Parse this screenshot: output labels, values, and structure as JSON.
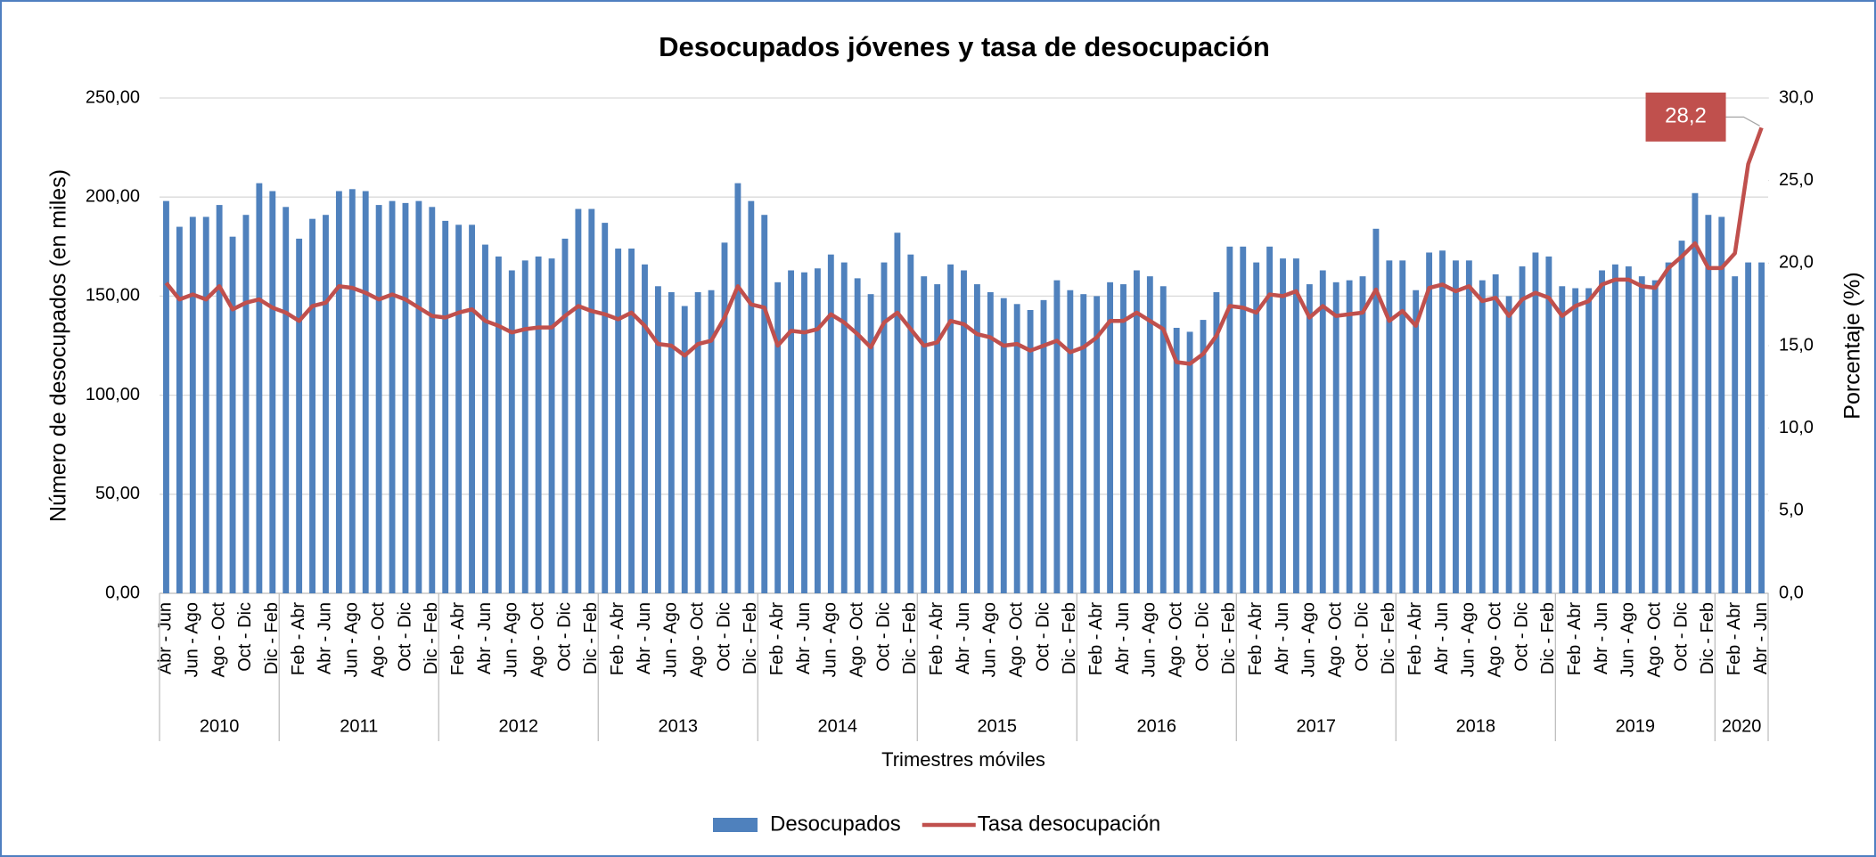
{
  "chart_data": {
    "type": "bar_line",
    "title": "Desocupados jóvenes y tasa de desocupación",
    "y_label": "Número de desocupados (en miles)",
    "y2_label": "Porcentaje (%)",
    "x_label": "Trimestres móviles",
    "categories": [
      "Abr - Jun",
      null,
      "Jun - Ago",
      null,
      "Ago - Oct",
      null,
      "Oct - Dic",
      null,
      "Dic - Feb",
      null,
      "Feb - Abr",
      null,
      "Abr - Jun",
      null,
      "Jun - Ago",
      null,
      "Ago - Oct",
      null,
      "Oct - Dic",
      null,
      "Dic - Feb",
      null,
      "Feb - Abr",
      null,
      "Abr - Jun",
      null,
      "Jun - Ago",
      null,
      "Ago - Oct",
      null,
      "Oct - Dic",
      null,
      "Dic - Feb",
      null,
      "Feb - Abr",
      null,
      "Abr - Jun",
      null,
      "Jun - Ago",
      null,
      "Ago - Oct",
      null,
      "Oct - Dic",
      null,
      "Dic - Feb",
      null,
      "Feb - Abr",
      null,
      "Abr - Jun",
      null,
      "Jun - Ago",
      null,
      "Ago - Oct",
      null,
      "Oct - Dic",
      null,
      "Dic - Feb",
      null,
      "Feb - Abr",
      null,
      "Abr - Jun",
      null,
      "Jun - Ago",
      null,
      "Ago - Oct",
      null,
      "Oct - Dic",
      null,
      "Dic - Feb",
      null,
      "Feb - Abr",
      null,
      "Abr - Jun",
      null,
      "Jun - Ago",
      null,
      "Ago - Oct",
      null,
      "Oct - Dic",
      null,
      "Dic - Feb",
      null,
      "Feb - Abr",
      null,
      "Abr - Jun",
      null,
      "Jun - Ago",
      null,
      "Ago - Oct",
      null,
      "Oct - Dic",
      null,
      "Dic - Feb",
      null,
      "Feb - Abr",
      null,
      "Abr - Jun",
      null,
      "Jun - Ago",
      null,
      "Ago - Oct",
      null,
      "Oct - Dic",
      null,
      "Dic - Feb",
      null,
      "Feb - Abr",
      null,
      "Abr - Jun",
      null,
      "Jun - Ago",
      null,
      "Ago - Oct",
      null,
      "Oct - Dic",
      null,
      "Dic - Feb",
      null,
      "Feb - Abr",
      null,
      "Abr - Jun"
    ],
    "year_groups": [
      {
        "label": "2010",
        "count": 9
      },
      {
        "label": "2011",
        "count": 12
      },
      {
        "label": "2012",
        "count": 12
      },
      {
        "label": "2013",
        "count": 12
      },
      {
        "label": "2014",
        "count": 12
      },
      {
        "label": "2015",
        "count": 12
      },
      {
        "label": "2016",
        "count": 12
      },
      {
        "label": "2017",
        "count": 12
      },
      {
        "label": "2018",
        "count": 12
      },
      {
        "label": "2019",
        "count": 12
      },
      {
        "label": "2020",
        "count": 4
      }
    ],
    "series": [
      {
        "name": "Desocupados",
        "type": "bar",
        "color": "#4f81bd",
        "values": [
          198,
          185,
          190,
          190,
          196,
          180,
          191,
          207,
          203,
          195,
          179,
          189,
          191,
          203,
          204,
          203,
          196,
          198,
          197,
          198,
          195,
          188,
          186,
          186,
          176,
          170,
          163,
          168,
          170,
          169,
          179,
          194,
          194,
          187,
          174,
          174,
          166,
          155,
          152,
          145,
          152,
          153,
          177,
          207,
          198,
          191,
          157,
          163,
          162,
          164,
          171,
          167,
          159,
          151,
          167,
          182,
          171,
          160,
          156,
          166,
          163,
          156,
          152,
          149,
          146,
          143,
          148,
          158,
          153,
          151,
          150,
          157,
          156,
          163,
          160,
          155,
          134,
          132,
          138,
          152,
          175,
          175,
          167,
          175,
          169,
          169,
          156,
          163,
          157,
          158,
          160,
          184,
          168,
          168,
          153,
          172,
          173,
          168,
          168,
          158,
          161,
          150,
          165,
          172,
          170,
          155,
          154,
          154,
          163,
          166,
          165,
          160,
          158,
          167,
          178,
          202,
          191,
          190,
          160,
          167,
          167
        ]
      },
      {
        "name": "Tasa desocupación",
        "type": "line",
        "axis": "y2",
        "color": "#c0504d",
        "values": [
          18.8,
          17.8,
          18.1,
          17.8,
          18.6,
          17.2,
          17.6,
          17.8,
          17.3,
          17.0,
          16.5,
          17.4,
          17.6,
          18.6,
          18.5,
          18.2,
          17.8,
          18.1,
          17.8,
          17.3,
          16.8,
          16.7,
          17.0,
          17.2,
          16.5,
          16.2,
          15.8,
          16.0,
          16.1,
          16.1,
          16.8,
          17.4,
          17.1,
          16.9,
          16.6,
          17.0,
          16.2,
          15.1,
          15.0,
          14.4,
          15.1,
          15.3,
          16.7,
          18.6,
          17.5,
          17.3,
          15.0,
          15.9,
          15.8,
          16.0,
          16.9,
          16.4,
          15.7,
          14.9,
          16.4,
          17.0,
          16.0,
          15.0,
          15.2,
          16.5,
          16.3,
          15.7,
          15.5,
          15.0,
          15.1,
          14.7,
          15.0,
          15.3,
          14.6,
          14.9,
          15.5,
          16.5,
          16.5,
          17.0,
          16.5,
          16.0,
          14.0,
          13.9,
          14.5,
          15.6,
          17.4,
          17.3,
          17.0,
          18.1,
          18.0,
          18.3,
          16.7,
          17.4,
          16.8,
          16.9,
          17.0,
          18.4,
          16.5,
          17.1,
          16.2,
          18.5,
          18.7,
          18.3,
          18.6,
          17.7,
          17.9,
          16.8,
          17.8,
          18.2,
          17.9,
          16.8,
          17.4,
          17.7,
          18.7,
          19.0,
          19.0,
          18.6,
          18.5,
          19.7,
          20.4,
          21.2,
          19.7,
          19.7,
          20.6,
          26.0,
          28.2
        ],
        "value_labels": [
          null,
          null,
          null,
          null,
          null,
          null,
          null,
          null,
          null,
          null,
          null,
          null,
          null,
          null,
          null,
          null,
          null,
          null,
          null,
          null,
          null,
          null,
          null,
          null,
          null,
          null,
          null,
          null,
          null,
          null,
          null,
          null,
          null,
          null,
          null,
          null,
          null,
          null,
          null,
          null,
          null,
          null,
          null,
          null,
          null,
          null,
          null,
          null,
          null,
          null,
          null,
          null,
          null,
          null,
          null,
          null,
          null,
          null,
          null,
          null,
          null,
          null,
          null,
          null,
          null,
          null,
          null,
          null,
          null,
          null,
          null,
          null,
          null,
          null,
          null,
          null,
          null,
          null,
          null,
          null,
          null,
          null,
          null,
          null,
          null,
          null,
          null,
          null,
          null,
          null,
          null,
          null,
          null,
          null,
          null,
          null,
          null,
          null,
          null,
          null,
          null,
          null,
          null,
          null,
          null,
          null,
          null,
          null,
          null,
          null,
          null,
          null,
          null,
          null,
          null,
          null,
          null,
          null,
          null,
          null,
          "28,2"
        ]
      }
    ],
    "ylim": [
      0,
      250
    ],
    "yticks": [
      {
        "value": 0,
        "label": "0,00"
      },
      {
        "value": 50,
        "label": "50,00"
      },
      {
        "value": 100,
        "label": "100,00"
      },
      {
        "value": 150,
        "label": "150,00"
      },
      {
        "value": 200,
        "label": "200,00"
      },
      {
        "value": 250,
        "label": "250,00"
      }
    ],
    "y2lim": [
      0,
      30
    ],
    "y2ticks": [
      {
        "value": 0,
        "label": "0,0"
      },
      {
        "value": 5,
        "label": "5,0"
      },
      {
        "value": 10,
        "label": "10,0"
      },
      {
        "value": 15,
        "label": "15,0"
      },
      {
        "value": 20,
        "label": "20,0"
      },
      {
        "value": 25,
        "label": "25,0"
      },
      {
        "value": 30,
        "label": "30,0"
      }
    ],
    "grid": true,
    "legend": "bottom"
  }
}
